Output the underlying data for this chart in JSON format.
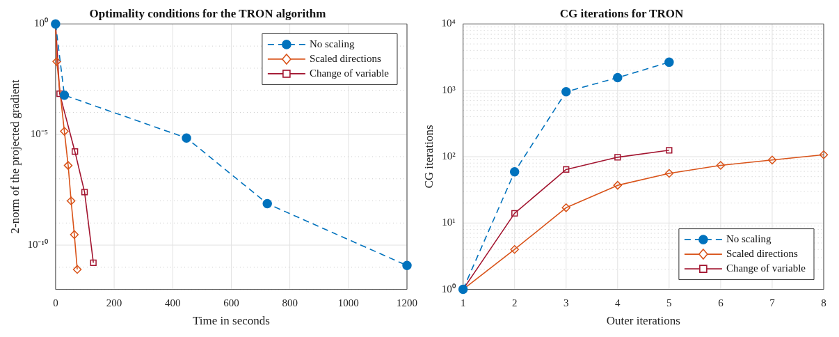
{
  "chart_data": [
    {
      "type": "line",
      "title": "Optimality conditions for the TRON algorithm",
      "xlabel": "Time in seconds",
      "ylabel": "2-norm of the projected gradient",
      "log": "y",
      "grid": true,
      "legend": "top right",
      "xlim": [
        0,
        1200
      ],
      "xticks": [
        0,
        200,
        400,
        600,
        800,
        1000,
        1200
      ],
      "ylim": [
        1e-12,
        1
      ],
      "yticks": [
        {
          "value": 1e-12,
          "label": null
        },
        {
          "value": 1e-11,
          "label": null
        },
        {
          "value": 1e-10,
          "label": "10⁻¹⁰"
        },
        {
          "value": 1e-09,
          "label": null
        },
        {
          "value": 1e-08,
          "label": null
        },
        {
          "value": 1e-07,
          "label": null
        },
        {
          "value": 1e-06,
          "label": null
        },
        {
          "value": 1e-05,
          "label": "10⁻⁵"
        },
        {
          "value": 0.0001,
          "label": null
        },
        {
          "value": 0.001,
          "label": null
        },
        {
          "value": 0.01,
          "label": null
        },
        {
          "value": 0.1,
          "label": null
        },
        {
          "value": 1,
          "label": "10⁰"
        }
      ],
      "series": [
        {
          "name": "No scaling",
          "color": "#0072bd",
          "marker": "circle",
          "line_style": "dashed",
          "x": [
            0,
            30,
            447,
            723,
            1200
          ],
          "values": [
            1,
            0.0006,
            7e-06,
            7.5e-09,
            1.2e-11
          ]
        },
        {
          "name": "Scaled directions",
          "color": "#d95319",
          "marker": "diamond",
          "line_style": "solid",
          "x": [
            0,
            4,
            30,
            43,
            53,
            64,
            74
          ],
          "values": [
            1,
            0.02,
            1.4e-05,
            4e-07,
            1e-08,
            3e-10,
            8e-12
          ]
        },
        {
          "name": "Change of variable",
          "color": "#a2142f",
          "marker": "square",
          "line_style": "solid",
          "x": [
            0,
            14,
            66,
            99,
            129
          ],
          "values": [
            1,
            0.0007,
            1.7e-06,
            2.5e-08,
            1.6e-11
          ]
        }
      ]
    },
    {
      "type": "line",
      "title": "CG iterations for TRON",
      "xlabel": "Outer iterations",
      "ylabel": "CG iterations",
      "log": "y",
      "grid": true,
      "legend": "bottom right",
      "xlim": [
        1,
        8
      ],
      "xticks": [
        1,
        2,
        3,
        4,
        5,
        6,
        7,
        8
      ],
      "ylim": [
        1,
        10000
      ],
      "yticks": [
        {
          "value": 1,
          "label": "10⁰"
        },
        {
          "value": 2,
          "label": null
        },
        {
          "value": 3,
          "label": null
        },
        {
          "value": 4,
          "label": null
        },
        {
          "value": 5,
          "label": null
        },
        {
          "value": 6,
          "label": null
        },
        {
          "value": 7,
          "label": null
        },
        {
          "value": 8,
          "label": null
        },
        {
          "value": 9,
          "label": null
        },
        {
          "value": 10,
          "label": "10¹"
        },
        {
          "value": 20,
          "label": null
        },
        {
          "value": 30,
          "label": null
        },
        {
          "value": 40,
          "label": null
        },
        {
          "value": 50,
          "label": null
        },
        {
          "value": 60,
          "label": null
        },
        {
          "value": 70,
          "label": null
        },
        {
          "value": 80,
          "label": null
        },
        {
          "value": 90,
          "label": null
        },
        {
          "value": 100,
          "label": "10²"
        },
        {
          "value": 200,
          "label": null
        },
        {
          "value": 300,
          "label": null
        },
        {
          "value": 400,
          "label": null
        },
        {
          "value": 500,
          "label": null
        },
        {
          "value": 600,
          "label": null
        },
        {
          "value": 700,
          "label": null
        },
        {
          "value": 800,
          "label": null
        },
        {
          "value": 900,
          "label": null
        },
        {
          "value": 1000,
          "label": "10³"
        },
        {
          "value": 2000,
          "label": null
        },
        {
          "value": 3000,
          "label": null
        },
        {
          "value": 4000,
          "label": null
        },
        {
          "value": 5000,
          "label": null
        },
        {
          "value": 6000,
          "label": null
        },
        {
          "value": 7000,
          "label": null
        },
        {
          "value": 8000,
          "label": null
        },
        {
          "value": 9000,
          "label": null
        },
        {
          "value": 10000,
          "label": "10⁴"
        }
      ],
      "series": [
        {
          "name": "No scaling",
          "color": "#0072bd",
          "marker": "circle",
          "line_style": "dashed",
          "x": [
            1,
            2,
            3,
            4,
            5
          ],
          "values": [
            1,
            59,
            950,
            1550,
            2650
          ]
        },
        {
          "name": "Scaled directions",
          "color": "#d95319",
          "marker": "diamond",
          "line_style": "solid",
          "x": [
            1,
            2,
            3,
            4,
            5,
            6,
            7,
            8
          ],
          "values": [
            1,
            4,
            17,
            37,
            56,
            74,
            89,
            107
          ]
        },
        {
          "name": "Change of variable",
          "color": "#a2142f",
          "marker": "square",
          "line_style": "solid",
          "x": [
            1,
            2,
            3,
            4,
            5
          ],
          "values": [
            1,
            14,
            64,
            98,
            125
          ]
        }
      ]
    }
  ]
}
